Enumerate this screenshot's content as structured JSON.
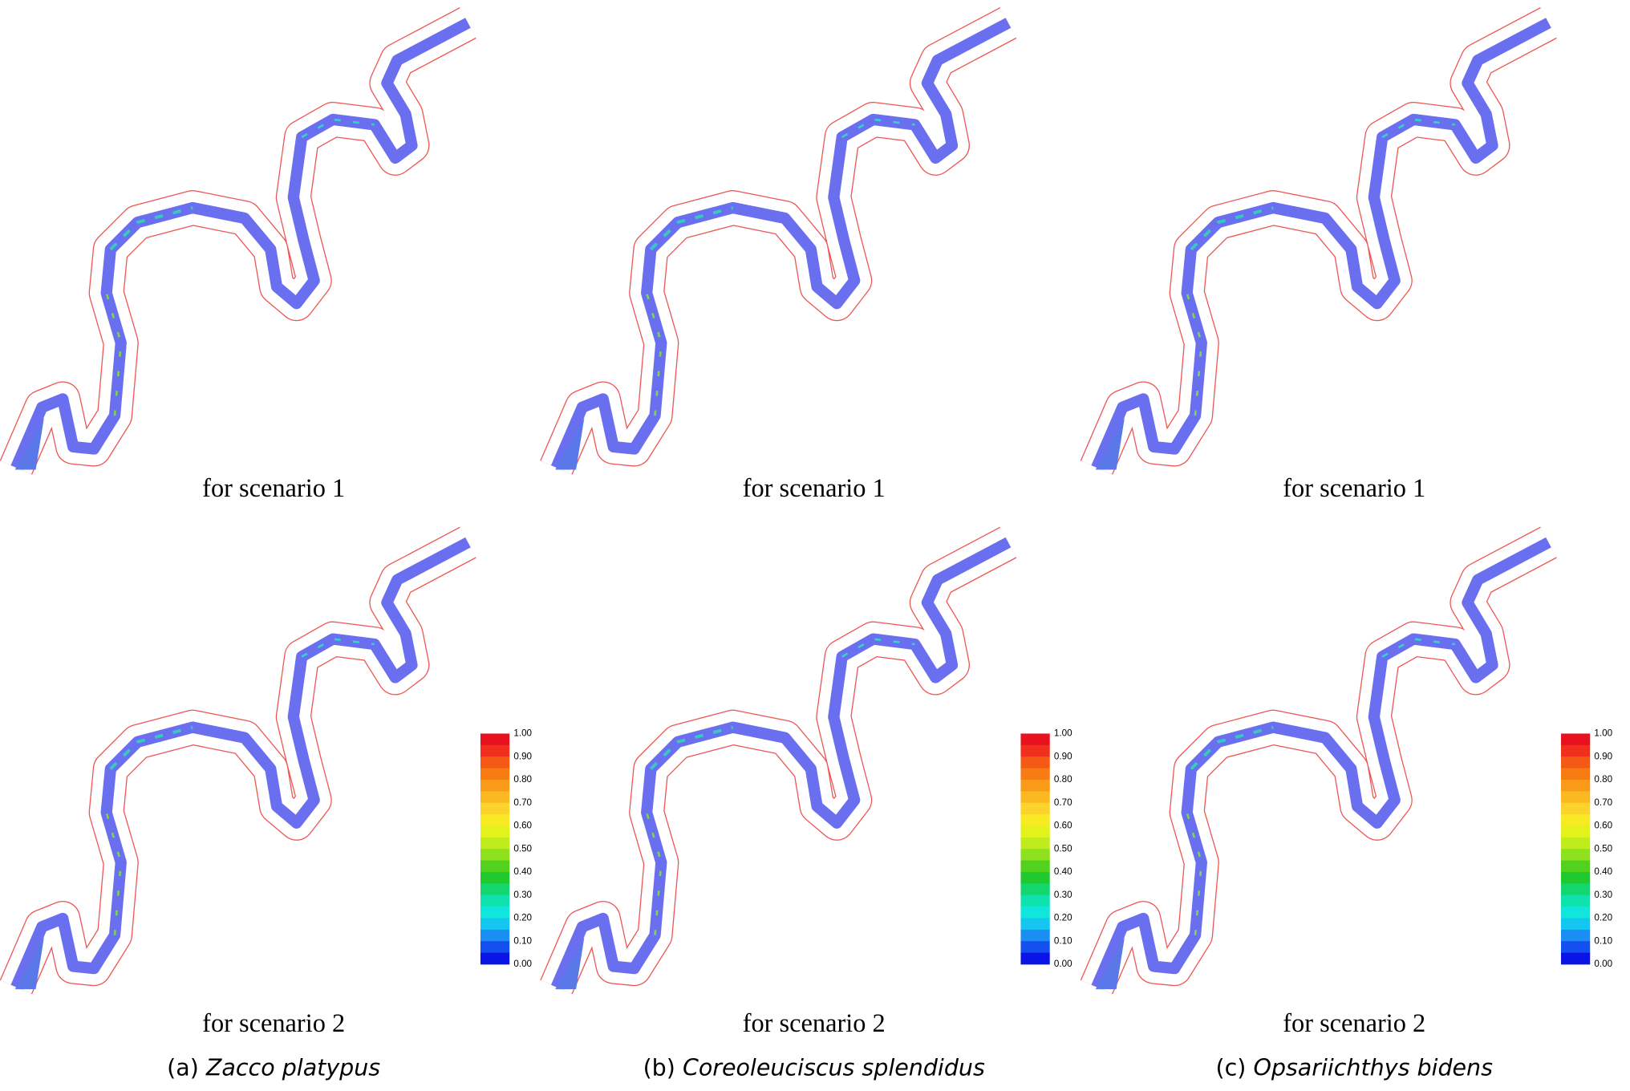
{
  "panels": [
    {
      "label": "(a)",
      "species": "Zacco platypus",
      "scenarios": [
        "for scenario 1",
        "for scenario 2"
      ]
    },
    {
      "label": "(b)",
      "species": "Coreoleuciscus splendidus",
      "scenarios": [
        "for scenario 1",
        "for scenario 2"
      ]
    },
    {
      "label": "(c)",
      "species": "Opsariichthys bidens",
      "scenarios": [
        "for scenario 1",
        "for scenario 2"
      ]
    }
  ],
  "legend": {
    "ticks": [
      "1.00",
      "0.90",
      "0.80",
      "0.70",
      "0.60",
      "0.50",
      "0.40",
      "0.30",
      "0.20",
      "0.10",
      "0.00"
    ],
    "colors": [
      "#e8121e",
      "#f0301c",
      "#f45a16",
      "#f77d12",
      "#f99a18",
      "#fbb821",
      "#fcd32a",
      "#f7ea22",
      "#e4f21c",
      "#c0ec1c",
      "#8ee11c",
      "#52d21e",
      "#1fc92e",
      "#13d66f",
      "#10e2ad",
      "#10e6dc",
      "#14c6f0",
      "#1a8ef3",
      "#1450f0",
      "#0a14e6"
    ]
  }
}
